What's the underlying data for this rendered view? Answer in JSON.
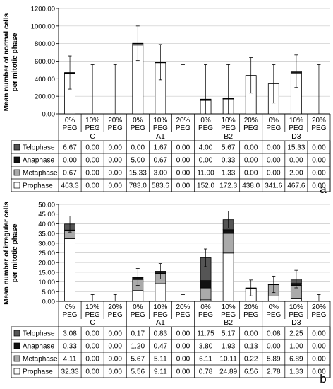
{
  "chart_data": [
    {
      "type": "bar",
      "stacked": true,
      "panel_label": "a",
      "ylabel": "Mean number of normal cells per mitotic phase",
      "ylim": [
        0,
        1200
      ],
      "yticks": [
        "0.00",
        "200.00",
        "400.00",
        "600.00",
        "800.00",
        "1000.00",
        "1200.00"
      ],
      "grid": true,
      "legend": "table-left",
      "group_labels": [
        "C",
        "A1",
        "B2",
        "D3"
      ],
      "category_lines": [
        [
          "0%",
          "PEG"
        ],
        [
          "10%",
          "PEG"
        ],
        [
          "20%",
          "PEG"
        ]
      ],
      "categories": [
        "C 0% PEG",
        "C 10% PEG",
        "C 20% PEG",
        "A1 0% PEG",
        "A1 10% PEG",
        "A1 20% PEG",
        "B2 0% PEG",
        "B2 10% PEG",
        "B2 20% PEG",
        "D3 0% PEG",
        "D3 10% PEG",
        "D3 20% PEG"
      ],
      "series": [
        {
          "name": "Telophase",
          "color": "#555555",
          "values": [
            6.67,
            0.0,
            0.0,
            0.0,
            1.67,
            0.0,
            4.0,
            5.67,
            0.0,
            0.0,
            15.33,
            0.0
          ],
          "labels": [
            "6.67",
            "0.00",
            "0.00",
            "0.00",
            "1.67",
            "0.00",
            "4.00",
            "5.67",
            "0.00",
            "0.00",
            "15.33",
            "0.00"
          ]
        },
        {
          "name": "Anaphase",
          "color": "#111111",
          "values": [
            0.0,
            0.0,
            0.0,
            5.0,
            0.67,
            0.0,
            0.0,
            0.33,
            0.0,
            0.0,
            0.0,
            0.0
          ],
          "labels": [
            "0.00",
            "0.00",
            "0.00",
            "5.00",
            "0.67",
            "0.00",
            "0.00",
            "0.33",
            "0.00",
            "0.00",
            "0.00",
            "0.00"
          ]
        },
        {
          "name": "Metaphase",
          "color": "#aaaaaa",
          "values": [
            0.67,
            0.0,
            0.0,
            15.33,
            3.0,
            0.0,
            11.0,
            1.33,
            0.0,
            0.0,
            2.0,
            0.0
          ],
          "labels": [
            "0.67",
            "0.00",
            "0.00",
            "15.33",
            "3.00",
            "0.00",
            "11.00",
            "1.33",
            "0.00",
            "0.00",
            "2.00",
            "0.00"
          ]
        },
        {
          "name": "Prophase",
          "color": "#ffffff",
          "values": [
            463.3,
            0.0,
            0.0,
            783.0,
            583.6,
            0.0,
            152.0,
            172.3,
            438.0,
            341.6,
            467.6,
            0.0
          ],
          "labels": [
            "463.3",
            "0.00",
            "0.00",
            "783.0",
            "583.6",
            "0.00",
            "152.0",
            "172.3",
            "438.0",
            "341.6",
            "467.6",
            "0.00"
          ]
        }
      ],
      "error_tops": [
        660,
        560,
        560,
        1000,
        790,
        560,
        560,
        560,
        640,
        560,
        670,
        560
      ]
    },
    {
      "type": "bar",
      "stacked": true,
      "panel_label": "b",
      "ylabel": "Mean number of irregular cells per mitotic phase",
      "ylim": [
        0,
        50
      ],
      "yticks": [
        "0.00",
        "5.00",
        "10.00",
        "15.00",
        "20.00",
        "25.00",
        "30.00",
        "35.00",
        "40.00",
        "45.00",
        "50.00"
      ],
      "grid": true,
      "legend": "table-left",
      "group_labels": [
        "C",
        "A1",
        "B2",
        "D3"
      ],
      "category_lines": [
        [
          "0%",
          "PEG"
        ],
        [
          "10%",
          "PEG"
        ],
        [
          "20%",
          "PEG"
        ]
      ],
      "categories": [
        "C 0% PEG",
        "C 10% PEG",
        "C 20% PEG",
        "A1 0% PEG",
        "A1 10% PEG",
        "A1 20% PEG",
        "B2 0% PEG",
        "B2 10% PEG",
        "B2 20% PEG",
        "D3 0% PEG",
        "D3 10% PEG",
        "D3 20% PEG"
      ],
      "series": [
        {
          "name": "Telophase",
          "color": "#555555",
          "values": [
            3.08,
            0.0,
            0.0,
            0.17,
            0.83,
            0.0,
            11.75,
            5.17,
            0.0,
            0.08,
            2.25,
            0.0
          ],
          "labels": [
            "3.08",
            "0.00",
            "0.00",
            "0.17",
            "0.83",
            "0.00",
            "11.75",
            "5.17",
            "0.00",
            "0.08",
            "2.25",
            "0.00"
          ]
        },
        {
          "name": "Anaphase",
          "color": "#111111",
          "values": [
            0.33,
            0.0,
            0.0,
            1.2,
            0.47,
            0.0,
            3.8,
            1.93,
            0.13,
            0.0,
            1.0,
            0.0
          ],
          "labels": [
            "0.33",
            "0.00",
            "0.00",
            "1.20",
            "0.47",
            "0.00",
            "3.80",
            "1.93",
            "0.13",
            "0.00",
            "1.00",
            "0.00"
          ]
        },
        {
          "name": "Metaphase",
          "color": "#aaaaaa",
          "values": [
            4.11,
            0.0,
            0.0,
            5.67,
            5.11,
            0.0,
            6.11,
            10.11,
            0.22,
            5.89,
            6.89,
            0.0
          ],
          "labels": [
            "4.11",
            "0.00",
            "0.00",
            "5.67",
            "5.11",
            "0.00",
            "6.11",
            "10.11",
            "0.22",
            "5.89",
            "6.89",
            "0.00"
          ]
        },
        {
          "name": "Prophase",
          "color": "#ffffff",
          "values": [
            32.33,
            0.0,
            0.0,
            5.56,
            9.11,
            0.0,
            0.78,
            24.89,
            6.56,
            2.78,
            1.33,
            0.0
          ],
          "labels": [
            "32.33",
            "0.00",
            "0.00",
            "5.56",
            "9.11",
            "0.00",
            "0.78",
            "24.89",
            "6.56",
            "2.78",
            "1.33",
            "0.00"
          ]
        }
      ],
      "error_tops": [
        44,
        3.5,
        3.5,
        17,
        19.5,
        3.5,
        27,
        46.5,
        11,
        13,
        16,
        3.5
      ]
    }
  ]
}
